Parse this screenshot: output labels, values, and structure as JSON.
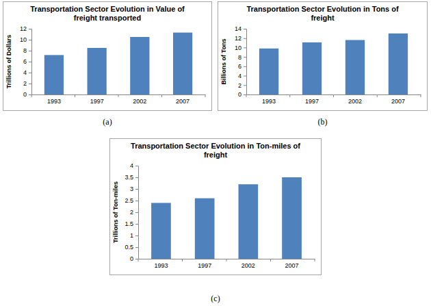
{
  "chart_data": [
    {
      "type": "bar",
      "title": "Transportation Sector Evolution in Value of\nfreight transported",
      "y_label": "Trillions of Dollars",
      "categories": [
        "1993",
        "1997",
        "2002",
        "2007"
      ],
      "values": [
        7.2,
        8.5,
        10.5,
        11.3
      ],
      "color": "#4f81bd",
      "ylim": [
        0,
        12
      ],
      "yticks": [
        0,
        2,
        4,
        6,
        8,
        10,
        12
      ],
      "grid": false,
      "annotations": [
        "(a)"
      ]
    },
    {
      "type": "bar",
      "title": "Transportation Sector Evolution in Tons of\nfreight",
      "y_label": "Billions of Tons",
      "categories": [
        "1993",
        "1997",
        "2002",
        "2007"
      ],
      "values": [
        9.8,
        11.1,
        11.6,
        13.0
      ],
      "color": "#4f81bd",
      "ylim": [
        0,
        14
      ],
      "yticks": [
        0,
        2,
        4,
        6,
        8,
        10,
        12,
        14
      ],
      "grid": false,
      "annotations": [
        "(b)"
      ]
    },
    {
      "type": "bar",
      "title": "Transportation Sector Evolution in Ton-miles of\nfreight",
      "y_label": "Trillions of Ton-miles",
      "categories": [
        "1993",
        "1997",
        "2002",
        "2007"
      ],
      "values": [
        2.4,
        2.6,
        3.2,
        3.5
      ],
      "color": "#4f81bd",
      "ylim": [
        0,
        4
      ],
      "yticks": [
        0,
        0.5,
        1,
        1.5,
        2,
        2.5,
        3,
        3.5,
        4
      ],
      "grid": false,
      "annotations": [
        "(c)"
      ]
    }
  ]
}
